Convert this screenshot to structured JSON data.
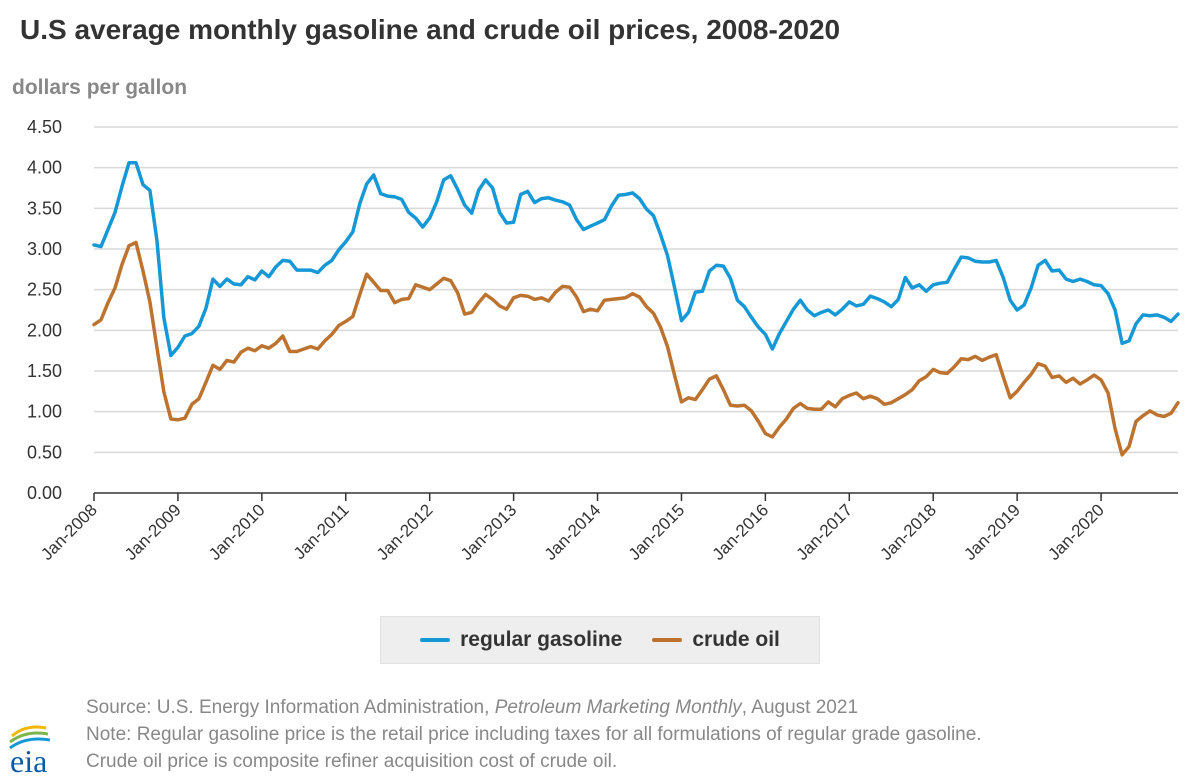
{
  "header": {
    "title": "U.S average monthly gasoline and crude oil prices, 2008-2020",
    "ylabel": "dollars per gallon"
  },
  "footer": {
    "source_prefix": "Source: U.S. Energy Information Administration, ",
    "source_pub": "Petroleum Marketing Monthly",
    "source_suffix": ", August 2021",
    "note_line1": "Note: Regular gasoline price is the retail price including taxes for all formulations of regular grade gasoline.",
    "note_line2": "Crude oil price is composite refiner acquisition cost of crude oil.",
    "logo_text": "eia"
  },
  "colors": {
    "gasoline": "#1798d6",
    "crude": "#bd7330",
    "grid": "#d9d9d9",
    "axis": "#333333"
  },
  "chart_data": {
    "type": "line",
    "title": "U.S average monthly gasoline and crude oil prices, 2008-2020",
    "ylabel": "dollars per gallon",
    "x_start": "2008-01",
    "x_end": "2020-12",
    "x_ticks": [
      "Jan-2008",
      "Jan-2009",
      "Jan-2010",
      "Jan-2011",
      "Jan-2012",
      "Jan-2013",
      "Jan-2014",
      "Jan-2015",
      "Jan-2016",
      "Jan-2017",
      "Jan-2018",
      "Jan-2019",
      "Jan-2020"
    ],
    "y_ticks": [
      "0.00",
      "0.50",
      "1.00",
      "1.50",
      "2.00",
      "2.50",
      "3.00",
      "3.50",
      "4.00",
      "4.50"
    ],
    "ylim": [
      0,
      4.5
    ],
    "grid": true,
    "legend_position": "bottom-center",
    "series": [
      {
        "name": "regular gasoline",
        "values": [
          3.05,
          3.03,
          3.24,
          3.45,
          3.77,
          4.06,
          4.06,
          3.79,
          3.72,
          3.11,
          2.15,
          1.69,
          1.79,
          1.93,
          1.96,
          2.05,
          2.27,
          2.63,
          2.54,
          2.63,
          2.57,
          2.56,
          2.66,
          2.62,
          2.73,
          2.66,
          2.78,
          2.86,
          2.85,
          2.74,
          2.74,
          2.74,
          2.71,
          2.8,
          2.86,
          2.99,
          3.09,
          3.21,
          3.56,
          3.8,
          3.91,
          3.68,
          3.65,
          3.64,
          3.61,
          3.45,
          3.38,
          3.27,
          3.38,
          3.58,
          3.85,
          3.9,
          3.73,
          3.54,
          3.44,
          3.72,
          3.85,
          3.75,
          3.45,
          3.32,
          3.33,
          3.67,
          3.71,
          3.57,
          3.62,
          3.63,
          3.6,
          3.58,
          3.54,
          3.36,
          3.24,
          3.28,
          3.32,
          3.36,
          3.53,
          3.66,
          3.67,
          3.69,
          3.62,
          3.49,
          3.41,
          3.18,
          2.92,
          2.53,
          2.12,
          2.22,
          2.47,
          2.48,
          2.73,
          2.8,
          2.79,
          2.64,
          2.37,
          2.29,
          2.16,
          2.04,
          1.95,
          1.77,
          1.96,
          2.11,
          2.26,
          2.37,
          2.25,
          2.18,
          2.22,
          2.25,
          2.19,
          2.26,
          2.35,
          2.3,
          2.32,
          2.42,
          2.39,
          2.35,
          2.29,
          2.38,
          2.65,
          2.52,
          2.56,
          2.48,
          2.56,
          2.58,
          2.59,
          2.75,
          2.9,
          2.89,
          2.85,
          2.84,
          2.84,
          2.86,
          2.65,
          2.37,
          2.25,
          2.31,
          2.52,
          2.8,
          2.86,
          2.73,
          2.74,
          2.63,
          2.6,
          2.63,
          2.6,
          2.56,
          2.55,
          2.45,
          2.25,
          1.84,
          1.87,
          2.08,
          2.19,
          2.18,
          2.19,
          2.16,
          2.11,
          2.2
        ]
      },
      {
        "name": "crude oil",
        "values": [
          2.07,
          2.13,
          2.34,
          2.52,
          2.81,
          3.04,
          3.08,
          2.73,
          2.35,
          1.79,
          1.24,
          0.91,
          0.9,
          0.92,
          1.09,
          1.16,
          1.36,
          1.57,
          1.52,
          1.63,
          1.61,
          1.73,
          1.78,
          1.75,
          1.81,
          1.78,
          1.84,
          1.93,
          1.74,
          1.74,
          1.77,
          1.8,
          1.77,
          1.87,
          1.95,
          2.06,
          2.11,
          2.17,
          2.44,
          2.69,
          2.59,
          2.49,
          2.49,
          2.34,
          2.38,
          2.39,
          2.56,
          2.53,
          2.5,
          2.57,
          2.64,
          2.61,
          2.46,
          2.2,
          2.22,
          2.34,
          2.44,
          2.38,
          2.3,
          2.26,
          2.4,
          2.43,
          2.42,
          2.38,
          2.4,
          2.36,
          2.47,
          2.54,
          2.53,
          2.41,
          2.23,
          2.26,
          2.24,
          2.37,
          2.38,
          2.39,
          2.4,
          2.45,
          2.41,
          2.29,
          2.21,
          2.04,
          1.8,
          1.45,
          1.12,
          1.17,
          1.15,
          1.27,
          1.4,
          1.44,
          1.27,
          1.08,
          1.07,
          1.08,
          1.01,
          0.88,
          0.73,
          0.69,
          0.81,
          0.91,
          1.04,
          1.1,
          1.04,
          1.03,
          1.03,
          1.12,
          1.06,
          1.16,
          1.2,
          1.23,
          1.16,
          1.19,
          1.16,
          1.09,
          1.11,
          1.16,
          1.21,
          1.27,
          1.38,
          1.43,
          1.52,
          1.48,
          1.47,
          1.55,
          1.65,
          1.64,
          1.68,
          1.63,
          1.67,
          1.7,
          1.43,
          1.17,
          1.25,
          1.36,
          1.46,
          1.59,
          1.56,
          1.42,
          1.44,
          1.36,
          1.41,
          1.34,
          1.39,
          1.45,
          1.39,
          1.23,
          0.79,
          0.47,
          0.57,
          0.88,
          0.95,
          1.01,
          0.96,
          0.94,
          0.98,
          1.11
        ]
      }
    ]
  }
}
